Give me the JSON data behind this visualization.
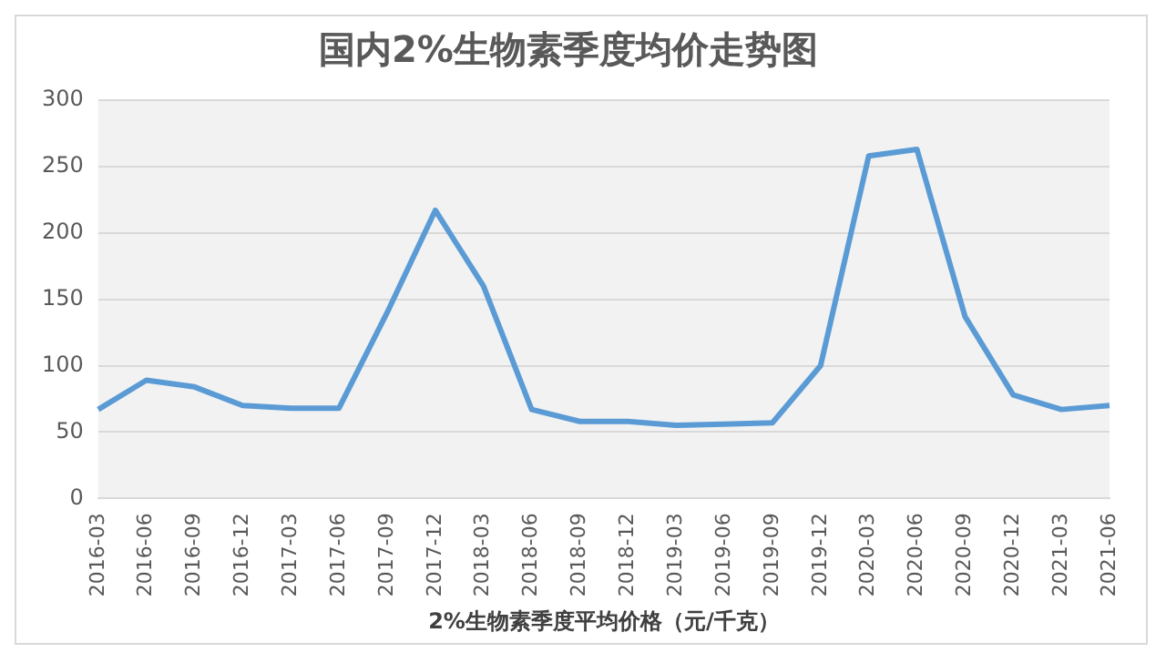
{
  "chart_data": {
    "type": "line",
    "title": "国内2%生物素季度均价走势图",
    "xlabel": "2%生物素季度平均价格（元/千克）",
    "categories": [
      "2016-03",
      "2016-06",
      "2016-09",
      "2016-12",
      "2017-03",
      "2017-06",
      "2017-09",
      "2017-12",
      "2018-03",
      "2018-06",
      "2018-09",
      "2018-12",
      "2019-03",
      "2019-06",
      "2019-09",
      "2019-12",
      "2020-03",
      "2020-06",
      "2020-09",
      "2020-12",
      "2021-03",
      "2021-06"
    ],
    "series": [
      {
        "color": "#5b9bd5",
        "values": [
          67,
          89,
          84,
          70,
          68,
          68,
          140,
          217,
          160,
          67,
          58,
          58,
          55,
          56,
          57,
          100,
          258,
          263,
          137,
          78,
          67,
          70
        ]
      }
    ],
    "ylim": [
      0,
      300
    ],
    "yticks": [
      0,
      50,
      100,
      150,
      200,
      250,
      300
    ],
    "grid": "y",
    "legend": false,
    "marker": "none",
    "line_style": "solid"
  }
}
